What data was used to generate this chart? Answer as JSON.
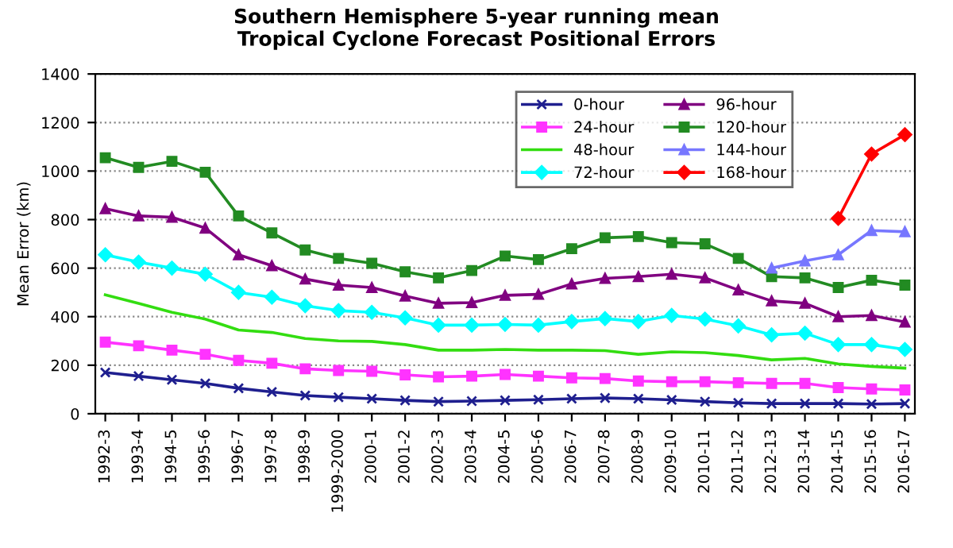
{
  "chart_data": {
    "type": "line",
    "title": "Southern Hemisphere 5-year running mean\nTropical Cyclone Forecast Positional Errors",
    "ylabel": "Mean Error (km)",
    "categories": [
      "1992-3",
      "1993-4",
      "1994-5",
      "1995-6",
      "1996-7",
      "1997-8",
      "1998-9",
      "1999-2000",
      "2000-1",
      "2001-2",
      "2002-3",
      "2003-4",
      "2004-5",
      "2005-6",
      "2006-7",
      "2007-8",
      "2008-9",
      "2009-10",
      "2010-11",
      "2011-12",
      "2012-13",
      "2013-14",
      "2014-15",
      "2015-16",
      "2016-17"
    ],
    "ylim": [
      0,
      1400
    ],
    "yticks": [
      0,
      200,
      400,
      600,
      800,
      1000,
      1200,
      1400
    ],
    "grid": "y",
    "legend": "top right",
    "series": [
      {
        "name": "0-hour",
        "color": "#1f1f8f",
        "marker": "cross",
        "values": [
          170,
          155,
          140,
          125,
          105,
          90,
          75,
          68,
          62,
          55,
          50,
          52,
          55,
          58,
          62,
          65,
          62,
          57,
          50,
          45,
          42,
          42,
          42,
          40,
          42
        ]
      },
      {
        "name": "24-hour",
        "color": "#ff33ff",
        "marker": "square",
        "values": [
          295,
          280,
          262,
          245,
          220,
          208,
          185,
          178,
          175,
          160,
          152,
          155,
          162,
          155,
          148,
          145,
          135,
          132,
          132,
          128,
          125,
          125,
          108,
          102,
          98
        ]
      },
      {
        "name": "48-hour",
        "color": "#33dd11",
        "marker": "none",
        "values": [
          490,
          455,
          418,
          390,
          345,
          335,
          310,
          300,
          298,
          285,
          262,
          262,
          265,
          262,
          262,
          260,
          245,
          255,
          252,
          240,
          222,
          228,
          205,
          195,
          188
        ]
      },
      {
        "name": "72-hour",
        "color": "#00ffff",
        "marker": "diamond",
        "values": [
          655,
          625,
          600,
          575,
          500,
          480,
          445,
          425,
          418,
          395,
          365,
          365,
          368,
          365,
          380,
          392,
          380,
          405,
          390,
          362,
          325,
          332,
          285,
          285,
          265
        ]
      },
      {
        "name": "96-hour",
        "color": "#800080",
        "marker": "triangle",
        "values": [
          845,
          815,
          810,
          765,
          655,
          610,
          555,
          530,
          520,
          485,
          455,
          458,
          488,
          492,
          535,
          558,
          565,
          575,
          560,
          510,
          465,
          455,
          400,
          405,
          378
        ]
      },
      {
        "name": "120-hour",
        "color": "#228b22",
        "marker": "square",
        "values": [
          1055,
          1015,
          1040,
          995,
          815,
          745,
          675,
          640,
          620,
          585,
          560,
          590,
          650,
          635,
          680,
          725,
          730,
          705,
          700,
          640,
          565,
          560,
          520,
          550,
          530
        ]
      },
      {
        "name": "144-hour",
        "color": "#7777ff",
        "marker": "triangle",
        "values": [
          null,
          null,
          null,
          null,
          null,
          null,
          null,
          null,
          null,
          null,
          null,
          null,
          null,
          null,
          null,
          null,
          null,
          null,
          null,
          null,
          600,
          630,
          655,
          755,
          750
        ]
      },
      {
        "name": "168-hour",
        "color": "#ff0000",
        "marker": "diamond",
        "values": [
          null,
          null,
          null,
          null,
          null,
          null,
          null,
          null,
          null,
          null,
          null,
          null,
          null,
          null,
          null,
          null,
          null,
          null,
          null,
          null,
          null,
          null,
          805,
          1070,
          1150
        ]
      }
    ]
  }
}
